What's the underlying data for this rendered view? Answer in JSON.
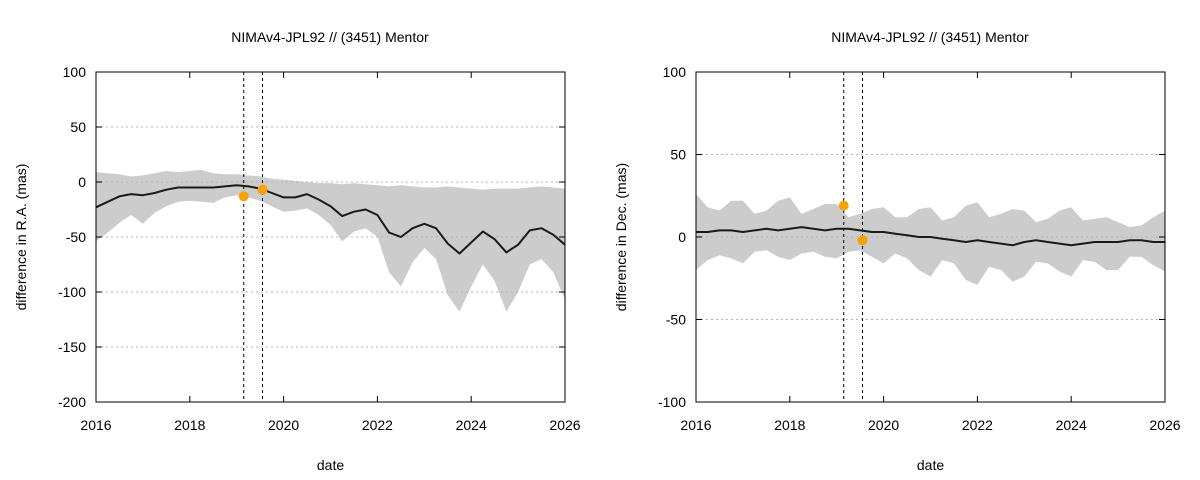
{
  "chart_data": [
    {
      "type": "line",
      "title": "NIMAv4-JPL92 // (3451) Mentor",
      "xlabel": "date",
      "ylabel": "difference in R.A. (mas)",
      "xlim": [
        2016,
        2026
      ],
      "ylim": [
        -200,
        100
      ],
      "xticks": [
        2016,
        2018,
        2020,
        2022,
        2024,
        2026
      ],
      "xtick_labels": [
        "2016",
        "2018",
        "2020",
        "2022",
        "2024",
        "2026"
      ],
      "yticks": [
        -200,
        -150,
        -100,
        -50,
        0,
        50,
        100
      ],
      "ytick_labels": [
        "-200",
        "-150",
        "-100",
        "-50",
        "0",
        "50",
        "100"
      ],
      "grid": true,
      "vlines": [
        2019.15,
        2019.55
      ],
      "colors": {
        "band": "#cccccc",
        "line": "#1a1a1a",
        "points": "#f5a30a"
      },
      "series": [
        {
          "kind": "line",
          "x": [
            2016,
            2016.25,
            2016.5,
            2016.75,
            2017,
            2017.25,
            2017.5,
            2017.75,
            2018,
            2018.25,
            2018.5,
            2018.75,
            2019,
            2019.25,
            2019.5,
            2019.75,
            2020,
            2020.25,
            2020.5,
            2020.75,
            2021,
            2021.25,
            2021.5,
            2021.75,
            2022,
            2022.25,
            2022.5,
            2022.75,
            2023,
            2023.25,
            2023.5,
            2023.75,
            2024,
            2024.25,
            2024.5,
            2024.75,
            2025,
            2025.25,
            2025.5,
            2025.75,
            2026
          ],
          "y": [
            -23,
            -18,
            -13,
            -11,
            -12,
            -10,
            -7,
            -5,
            -5,
            -5,
            -5,
            -4,
            -3,
            -4,
            -6,
            -10,
            -14,
            -14,
            -11,
            -16,
            -22,
            -31,
            -27,
            -25,
            -30,
            -46,
            -50,
            -42,
            -38,
            -42,
            -56,
            -65,
            -55,
            -45,
            -52,
            -64,
            -57,
            -44,
            -42,
            -48,
            -57
          ]
        },
        {
          "kind": "band",
          "x": [
            2016,
            2016.25,
            2016.5,
            2016.75,
            2017,
            2017.25,
            2017.5,
            2017.75,
            2018,
            2018.25,
            2018.5,
            2018.75,
            2019,
            2019.25,
            2019.5,
            2019.75,
            2020,
            2020.25,
            2020.5,
            2020.75,
            2021,
            2021.25,
            2021.5,
            2021.75,
            2022,
            2022.25,
            2022.5,
            2022.75,
            2023,
            2023.25,
            2023.5,
            2023.75,
            2024,
            2024.25,
            2024.5,
            2024.75,
            2025,
            2025.25,
            2025.5,
            2025.75,
            2026
          ],
          "upper": [
            9,
            8,
            7,
            5,
            6,
            8,
            10,
            9,
            10,
            11,
            8,
            7,
            7,
            6,
            5,
            3,
            2,
            1,
            0,
            -1,
            -1,
            -2,
            -1,
            -2,
            -3,
            -4,
            -3,
            -4,
            -5,
            -5,
            -4,
            -5,
            -6,
            -7,
            -6,
            -6,
            -6,
            -5,
            -4,
            -5,
            -6
          ],
          "lower": [
            -54,
            -46,
            -37,
            -30,
            -38,
            -28,
            -22,
            -18,
            -17,
            -18,
            -19,
            -14,
            -12,
            -14,
            -17,
            -22,
            -27,
            -26,
            -24,
            -30,
            -39,
            -54,
            -45,
            -42,
            -50,
            -82,
            -95,
            -73,
            -60,
            -70,
            -103,
            -118,
            -95,
            -75,
            -90,
            -118,
            -100,
            -75,
            -70,
            -82,
            -107
          ]
        },
        {
          "kind": "points",
          "x": [
            2019.15,
            2019.55
          ],
          "y": [
            -13,
            -7
          ]
        }
      ]
    },
    {
      "type": "line",
      "title": "NIMAv4-JPL92 // (3451) Mentor",
      "xlabel": "date",
      "ylabel": "difference in Dec. (mas)",
      "xlim": [
        2016,
        2026
      ],
      "ylim": [
        -100,
        100
      ],
      "xticks": [
        2016,
        2018,
        2020,
        2022,
        2024,
        2026
      ],
      "xtick_labels": [
        "2016",
        "2018",
        "2020",
        "2022",
        "2024",
        "2026"
      ],
      "yticks": [
        -100,
        -50,
        0,
        50,
        100
      ],
      "ytick_labels": [
        "-100",
        "-50",
        "0",
        "50",
        "100"
      ],
      "grid": true,
      "vlines": [
        2019.15,
        2019.55
      ],
      "colors": {
        "band": "#cccccc",
        "line": "#1a1a1a",
        "points": "#f5a30a"
      },
      "series": [
        {
          "kind": "line",
          "x": [
            2016,
            2016.25,
            2016.5,
            2016.75,
            2017,
            2017.25,
            2017.5,
            2017.75,
            2018,
            2018.25,
            2018.5,
            2018.75,
            2019,
            2019.25,
            2019.5,
            2019.75,
            2020,
            2020.25,
            2020.5,
            2020.75,
            2021,
            2021.25,
            2021.5,
            2021.75,
            2022,
            2022.25,
            2022.5,
            2022.75,
            2023,
            2023.25,
            2023.5,
            2023.75,
            2024,
            2024.25,
            2024.5,
            2024.75,
            2025,
            2025.25,
            2025.5,
            2025.75,
            2026
          ],
          "y": [
            3,
            3,
            4,
            4,
            3,
            4,
            5,
            4,
            5,
            6,
            5,
            4,
            5,
            5,
            4,
            3,
            3,
            2,
            1,
            0,
            0,
            -1,
            -2,
            -3,
            -2,
            -3,
            -4,
            -5,
            -3,
            -2,
            -3,
            -4,
            -5,
            -4,
            -3,
            -3,
            -3,
            -2,
            -2,
            -3,
            -3
          ]
        },
        {
          "kind": "band",
          "x": [
            2016,
            2016.25,
            2016.5,
            2016.75,
            2017,
            2017.25,
            2017.5,
            2017.75,
            2018,
            2018.25,
            2018.5,
            2018.75,
            2019,
            2019.25,
            2019.5,
            2019.75,
            2020,
            2020.25,
            2020.5,
            2020.75,
            2021,
            2021.25,
            2021.5,
            2021.75,
            2022,
            2022.25,
            2022.5,
            2022.75,
            2023,
            2023.25,
            2023.5,
            2023.75,
            2024,
            2024.25,
            2024.5,
            2024.75,
            2025,
            2025.25,
            2025.5,
            2025.75,
            2026
          ],
          "upper": [
            26,
            18,
            16,
            22,
            22,
            14,
            16,
            22,
            24,
            14,
            17,
            20,
            20,
            12,
            14,
            17,
            18,
            12,
            12,
            17,
            18,
            10,
            12,
            19,
            21,
            12,
            14,
            17,
            16,
            9,
            11,
            16,
            18,
            10,
            11,
            12,
            9,
            6,
            7,
            12,
            16
          ],
          "lower": [
            -20,
            -14,
            -11,
            -13,
            -16,
            -9,
            -8,
            -12,
            -14,
            -10,
            -9,
            -12,
            -13,
            -9,
            -8,
            -12,
            -16,
            -10,
            -13,
            -20,
            -24,
            -14,
            -16,
            -26,
            -29,
            -18,
            -20,
            -27,
            -24,
            -15,
            -16,
            -21,
            -24,
            -14,
            -15,
            -20,
            -20,
            -12,
            -12,
            -17,
            -21
          ]
        },
        {
          "kind": "points",
          "x": [
            2019.15,
            2019.55
          ],
          "y": [
            19,
            -2
          ]
        }
      ]
    }
  ]
}
